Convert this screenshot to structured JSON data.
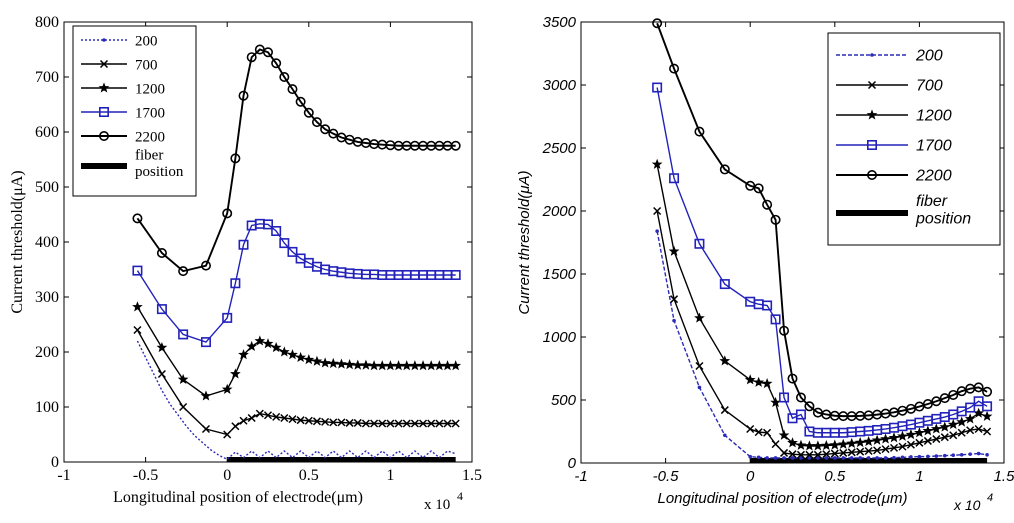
{
  "chart_data": [
    {
      "type": "line",
      "xlabel": "Longitudinal position of electrode(μm)",
      "ylabel": "Current threshold(μA)",
      "x_multiplier": "x 10",
      "x_multiplier_exp": "4",
      "xlim": [
        -1,
        1.5
      ],
      "ylim": [
        0,
        800
      ],
      "xticks": [
        -1,
        -0.5,
        0,
        0.5,
        1,
        1.5
      ],
      "yticks": [
        0,
        100,
        200,
        300,
        400,
        500,
        600,
        700,
        800
      ],
      "xtick_labels": [
        "-1",
        "-0.5",
        "0",
        "0.5",
        "1",
        "1.5"
      ],
      "ytick_labels": [
        "0",
        "100",
        "200",
        "300",
        "400",
        "500",
        "600",
        "700",
        "800"
      ],
      "grid": false,
      "legend_position": "top-left",
      "fiber_position": {
        "label": "fiber\nposition",
        "x_start": 0,
        "x_end": 1.4,
        "color": "#000000"
      },
      "series": [
        {
          "name": "200",
          "color": "#2b2bb8",
          "marker": "dot",
          "style": "dotted",
          "x": [
            -0.55,
            -0.5,
            -0.45,
            -0.4,
            -0.35,
            -0.3,
            -0.25,
            -0.2,
            -0.15,
            -0.1,
            -0.05,
            0,
            0.05,
            0.1,
            0.15,
            0.2,
            0.25,
            0.3,
            0.35,
            0.4,
            0.45,
            0.5,
            0.55,
            0.6,
            0.65,
            0.7,
            0.75,
            0.8,
            0.85,
            0.9,
            0.95,
            1.0,
            1.05,
            1.1,
            1.15,
            1.2,
            1.25,
            1.3,
            1.35,
            1.4
          ],
          "y": [
            220,
            190,
            160,
            130,
            105,
            85,
            65,
            48,
            35,
            22,
            12,
            5,
            18,
            8,
            20,
            8,
            20,
            8,
            20,
            8,
            20,
            8,
            20,
            8,
            20,
            8,
            20,
            8,
            20,
            8,
            20,
            8,
            20,
            8,
            20,
            8,
            20,
            8,
            20,
            15
          ]
        },
        {
          "name": "700",
          "color": "#000000",
          "marker": "x",
          "style": "solid",
          "x": [
            -0.55,
            -0.4,
            -0.27,
            -0.13,
            0,
            0.05,
            0.1,
            0.15,
            0.2,
            0.25,
            0.3,
            0.35,
            0.4,
            0.45,
            0.5,
            0.55,
            0.6,
            0.65,
            0.7,
            0.75,
            0.8,
            0.85,
            0.9,
            0.95,
            1.0,
            1.05,
            1.1,
            1.15,
            1.2,
            1.25,
            1.3,
            1.35,
            1.4
          ],
          "y": [
            240,
            160,
            100,
            60,
            50,
            65,
            75,
            80,
            88,
            85,
            82,
            80,
            78,
            76,
            75,
            74,
            73,
            72,
            72,
            71,
            71,
            70,
            70,
            70,
            70,
            70,
            70,
            70,
            70,
            70,
            70,
            70,
            70
          ]
        },
        {
          "name": "1200",
          "color": "#000000",
          "marker": "star",
          "style": "solid",
          "x": [
            -0.55,
            -0.4,
            -0.27,
            -0.13,
            0,
            0.05,
            0.1,
            0.15,
            0.2,
            0.25,
            0.3,
            0.35,
            0.4,
            0.45,
            0.5,
            0.55,
            0.6,
            0.65,
            0.7,
            0.75,
            0.8,
            0.85,
            0.9,
            0.95,
            1.0,
            1.05,
            1.1,
            1.15,
            1.2,
            1.25,
            1.3,
            1.35,
            1.4
          ],
          "y": [
            282,
            208,
            150,
            120,
            132,
            160,
            195,
            210,
            220,
            215,
            208,
            200,
            195,
            190,
            186,
            183,
            180,
            179,
            178,
            177,
            176,
            176,
            175,
            175,
            175,
            175,
            175,
            175,
            175,
            175,
            175,
            175,
            175
          ]
        },
        {
          "name": "1700",
          "color": "#2222bb",
          "marker": "square",
          "style": "solid",
          "x": [
            -0.55,
            -0.4,
            -0.27,
            -0.13,
            0,
            0.05,
            0.1,
            0.15,
            0.2,
            0.25,
            0.3,
            0.35,
            0.4,
            0.45,
            0.5,
            0.55,
            0.6,
            0.65,
            0.7,
            0.75,
            0.8,
            0.85,
            0.9,
            0.95,
            1.0,
            1.05,
            1.1,
            1.15,
            1.2,
            1.25,
            1.3,
            1.35,
            1.4
          ],
          "y": [
            348,
            278,
            232,
            218,
            262,
            325,
            395,
            430,
            433,
            432,
            420,
            398,
            382,
            370,
            362,
            355,
            350,
            347,
            345,
            343,
            342,
            341,
            341,
            340,
            340,
            340,
            340,
            340,
            340,
            340,
            340,
            340,
            340
          ]
        },
        {
          "name": "2200",
          "color": "#000000",
          "marker": "circle",
          "style": "solid",
          "x": [
            -0.55,
            -0.4,
            -0.27,
            -0.13,
            0,
            0.05,
            0.1,
            0.15,
            0.2,
            0.25,
            0.3,
            0.35,
            0.4,
            0.45,
            0.5,
            0.55,
            0.6,
            0.65,
            0.7,
            0.75,
            0.8,
            0.85,
            0.9,
            0.95,
            1.0,
            1.05,
            1.1,
            1.15,
            1.2,
            1.25,
            1.3,
            1.35,
            1.4
          ],
          "y": [
            443,
            380,
            347,
            357,
            452,
            552,
            666,
            736,
            750,
            745,
            725,
            700,
            678,
            655,
            635,
            618,
            605,
            597,
            590,
            586,
            582,
            580,
            578,
            577,
            576,
            575,
            575,
            575,
            575,
            575,
            575,
            575,
            575
          ]
        }
      ]
    },
    {
      "type": "line",
      "xlabel": "Longitudinal position of electrode(μm)",
      "ylabel": "Current threshold(μA)",
      "x_multiplier": "x 10",
      "x_multiplier_exp": "4",
      "xlim": [
        -1,
        1.5
      ],
      "ylim": [
        0,
        3500
      ],
      "xticks": [
        -1,
        -0.5,
        0,
        0.5,
        1,
        1.5
      ],
      "yticks": [
        0,
        500,
        1000,
        1500,
        2000,
        2500,
        3000,
        3500
      ],
      "xtick_labels": [
        "-1",
        "-0.5",
        "0",
        "0.5",
        "1",
        "1.5"
      ],
      "ytick_labels": [
        "0",
        "500",
        "1000",
        "1500",
        "2000",
        "2500",
        "3000",
        "3500"
      ],
      "grid": false,
      "legend_position": "top-right",
      "fiber_position": {
        "label": "fiber\nposition",
        "x_start": 0,
        "x_end": 1.4,
        "color": "#000000"
      },
      "series": [
        {
          "name": "200",
          "color": "#2b2bb8",
          "marker": "dot",
          "style": "dashed",
          "x": [
            -0.55,
            -0.45,
            -0.3,
            -0.15,
            0,
            0.05,
            0.1,
            0.15,
            0.2,
            0.25,
            0.3,
            0.35,
            0.4,
            0.45,
            0.5,
            0.55,
            0.6,
            0.65,
            0.7,
            0.75,
            0.8,
            0.85,
            0.9,
            0.95,
            1.0,
            1.05,
            1.1,
            1.15,
            1.2,
            1.25,
            1.3,
            1.35,
            1.4
          ],
          "y": [
            1840,
            1130,
            600,
            220,
            50,
            45,
            40,
            40,
            40,
            40,
            40,
            40,
            40,
            40,
            40,
            40,
            40,
            40,
            40,
            40,
            40,
            42,
            45,
            48,
            50,
            52,
            55,
            58,
            62,
            65,
            70,
            75,
            65
          ]
        },
        {
          "name": "700",
          "color": "#000000",
          "marker": "x",
          "style": "solid",
          "x": [
            -0.55,
            -0.45,
            -0.3,
            -0.15,
            0,
            0.05,
            0.1,
            0.15,
            0.2,
            0.25,
            0.3,
            0.35,
            0.4,
            0.45,
            0.5,
            0.55,
            0.6,
            0.65,
            0.7,
            0.75,
            0.8,
            0.85,
            0.9,
            0.95,
            1.0,
            1.05,
            1.1,
            1.15,
            1.2,
            1.25,
            1.3,
            1.35,
            1.4
          ],
          "y": [
            2000,
            1300,
            770,
            420,
            270,
            245,
            240,
            150,
            80,
            70,
            65,
            65,
            65,
            70,
            75,
            80,
            85,
            90,
            95,
            100,
            110,
            120,
            130,
            145,
            160,
            175,
            190,
            205,
            220,
            240,
            260,
            270,
            250
          ]
        },
        {
          "name": "1200",
          "color": "#000000",
          "marker": "star",
          "style": "solid",
          "x": [
            -0.55,
            -0.45,
            -0.3,
            -0.15,
            0,
            0.05,
            0.1,
            0.15,
            0.2,
            0.25,
            0.3,
            0.35,
            0.4,
            0.45,
            0.5,
            0.55,
            0.6,
            0.65,
            0.7,
            0.75,
            0.8,
            0.85,
            0.9,
            0.95,
            1.0,
            1.05,
            1.1,
            1.15,
            1.2,
            1.25,
            1.3,
            1.35,
            1.4
          ],
          "y": [
            2370,
            1680,
            1150,
            810,
            660,
            640,
            630,
            480,
            220,
            160,
            140,
            135,
            135,
            138,
            142,
            148,
            155,
            162,
            170,
            180,
            190,
            200,
            212,
            225,
            240,
            255,
            270,
            285,
            305,
            325,
            350,
            395,
            370
          ]
        },
        {
          "name": "1700",
          "color": "#2222bb",
          "marker": "square",
          "style": "solid",
          "x": [
            -0.55,
            -0.45,
            -0.3,
            -0.15,
            0,
            0.05,
            0.1,
            0.15,
            0.2,
            0.25,
            0.3,
            0.35,
            0.4,
            0.45,
            0.5,
            0.55,
            0.6,
            0.65,
            0.7,
            0.75,
            0.8,
            0.85,
            0.9,
            0.95,
            1.0,
            1.05,
            1.1,
            1.15,
            1.2,
            1.25,
            1.3,
            1.35,
            1.4
          ],
          "y": [
            2980,
            2260,
            1740,
            1420,
            1280,
            1260,
            1250,
            1140,
            520,
            355,
            385,
            250,
            240,
            240,
            240,
            240,
            245,
            250,
            255,
            262,
            270,
            280,
            292,
            305,
            320,
            335,
            350,
            365,
            385,
            410,
            440,
            490,
            450
          ]
        },
        {
          "name": "2200",
          "color": "#000000",
          "marker": "circle",
          "style": "solid",
          "x": [
            -0.55,
            -0.45,
            -0.3,
            -0.15,
            0,
            0.05,
            0.1,
            0.15,
            0.2,
            0.25,
            0.3,
            0.35,
            0.4,
            0.45,
            0.5,
            0.55,
            0.6,
            0.65,
            0.7,
            0.75,
            0.8,
            0.85,
            0.9,
            0.95,
            1.0,
            1.05,
            1.1,
            1.15,
            1.2,
            1.25,
            1.3,
            1.35,
            1.4
          ],
          "y": [
            3490,
            3130,
            2630,
            2330,
            2200,
            2180,
            2050,
            1930,
            1050,
            670,
            520,
            450,
            400,
            385,
            375,
            372,
            372,
            374,
            378,
            384,
            392,
            402,
            415,
            430,
            448,
            468,
            490,
            515,
            540,
            570,
            590,
            600,
            565
          ]
        }
      ]
    }
  ]
}
